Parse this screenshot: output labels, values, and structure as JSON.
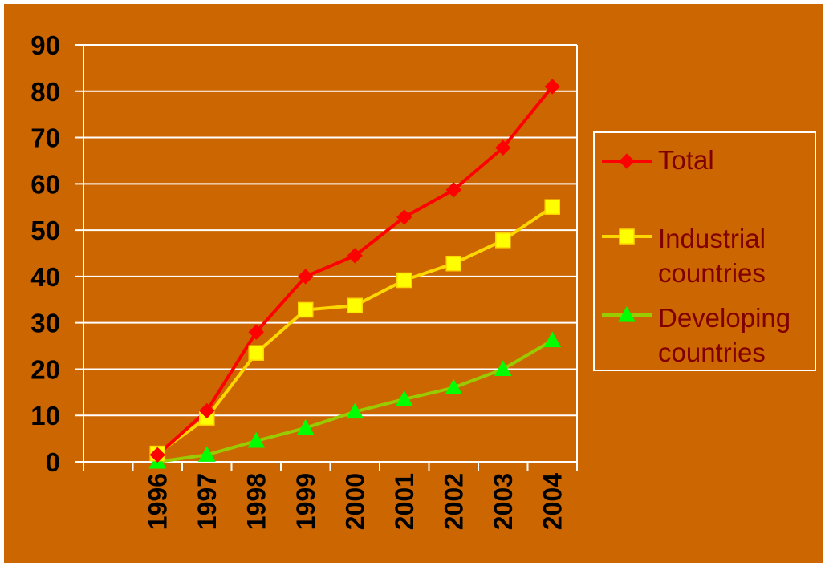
{
  "colors": {
    "background": "#CC6600",
    "grid": "#FFFFFF",
    "axis_text": "#000000",
    "legend_text": "#800000"
  },
  "chart_data": {
    "type": "line",
    "title": "",
    "xlabel": "",
    "ylabel": "",
    "ylim": [
      0,
      90
    ],
    "yticks": [
      0,
      10,
      20,
      30,
      40,
      50,
      60,
      70,
      80,
      90
    ],
    "grid": true,
    "legend_position": "right",
    "categories": [
      "",
      "1996",
      "1997",
      "1998",
      "1999",
      "2000",
      "2001",
      "2002",
      "2003",
      "2004"
    ],
    "x": [
      "1996",
      "1997",
      "1998",
      "1999",
      "2000",
      "2001",
      "2002",
      "2003",
      "2004"
    ],
    "series": [
      {
        "name": "Total",
        "color": "#FF0000",
        "marker": "diamond",
        "values": [
          1.5,
          11,
          28,
          40,
          44.5,
          52.8,
          58.7,
          67.8,
          81
        ]
      },
      {
        "name": "Industrial countries",
        "legend_lines": [
          "Industrial",
          "countries"
        ],
        "color": "#FFD700",
        "marker_color": "#FFFF00",
        "marker": "square",
        "values": [
          1.8,
          9.5,
          23.5,
          32.8,
          33.7,
          39.2,
          42.8,
          47.8,
          55
        ]
      },
      {
        "name": "Developing countries",
        "legend_lines": [
          "Developing",
          "countries"
        ],
        "color": "#99CC00",
        "marker_color": "#00FF00",
        "marker": "triangle",
        "values": [
          0,
          1.5,
          4.5,
          7.3,
          10.8,
          13.5,
          16,
          20,
          26.2
        ]
      }
    ]
  }
}
